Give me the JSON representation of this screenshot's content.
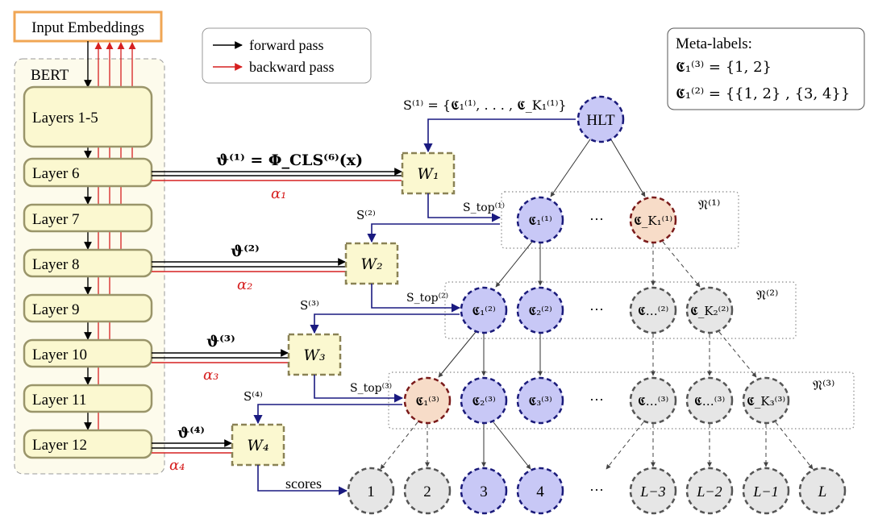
{
  "input": {
    "label": "Input Embeddings"
  },
  "bert": {
    "label": "BERT",
    "layers": [
      "Layers 1-5",
      "Layer 6",
      "Layer 7",
      "Layer 8",
      "Layer 9",
      "Layer 10",
      "Layer 11",
      "Layer 12"
    ]
  },
  "legend": {
    "forward": "forward pass",
    "backward": "backward pass"
  },
  "meta": {
    "title": "Meta-labels:",
    "line1": "𝕮₁⁽³⁾ = {1, 2}",
    "line2": "𝕮₁⁽²⁾ = {{1, 2} , {3, 4}}"
  },
  "embeds": {
    "e1": "ϑ⁽¹⁾ = Φ_CLS⁽⁶⁾(x)",
    "e2": "ϑ⁽²⁾",
    "e3": "ϑ⁽³⁾",
    "e4": "ϑ⁽⁴⁾"
  },
  "alphas": [
    "α₁",
    "α₂",
    "α₃",
    "α₄"
  ],
  "weights": [
    "W₁",
    "W₂",
    "W₃",
    "W₄"
  ],
  "s_labels": {
    "s1": "S⁽¹⁾ = {𝕮₁⁽¹⁾, . . . , 𝕮_K₁⁽¹⁾}",
    "s2": "S⁽²⁾",
    "s3": "S⁽³⁾",
    "s4": "S⁽⁴⁾",
    "top1": "S_top⁽¹⁾",
    "top2": "S_top⁽²⁾",
    "top3": "S_top⁽³⁾"
  },
  "scores_label": "scores",
  "hlt": "HLT",
  "region_labels": [
    "𝔑⁽¹⁾",
    "𝔑⁽²⁾",
    "𝔑⁽³⁾"
  ],
  "level1_nodes": [
    "𝕮₁⁽¹⁾",
    "𝕮_K₁⁽¹⁾"
  ],
  "level2_nodes": [
    "𝕮₁⁽²⁾",
    "𝕮₂⁽²⁾",
    "𝕮…⁽²⁾",
    "𝕮_K₂⁽²⁾"
  ],
  "level3_nodes": [
    "𝕮₁⁽³⁾",
    "𝕮₂⁽³⁾",
    "𝕮₃⁽³⁾",
    "𝕮…⁽³⁾",
    "𝕮…⁽³⁾",
    "𝕮_K₃⁽³⁾"
  ],
  "leaves": [
    "1",
    "2",
    "3",
    "4",
    "L−3",
    "L−2",
    "L−1",
    "L"
  ],
  "ellipsis": "···",
  "colors": {
    "input_border": "#f0a654",
    "layer_fill": "#fbf8d0",
    "layer_stroke": "#9a956a",
    "bert_bg": "#fdfbec",
    "blue_fill": "#c8c8f6",
    "blue_stroke": "#1a1a7a",
    "orange_fill": "#f7dcc8",
    "orange_stroke": "#7a1a1a",
    "gray_fill": "#e6e6e6",
    "gray_stroke": "#555555",
    "red": "#d62020",
    "navy": "#1a1a80"
  }
}
